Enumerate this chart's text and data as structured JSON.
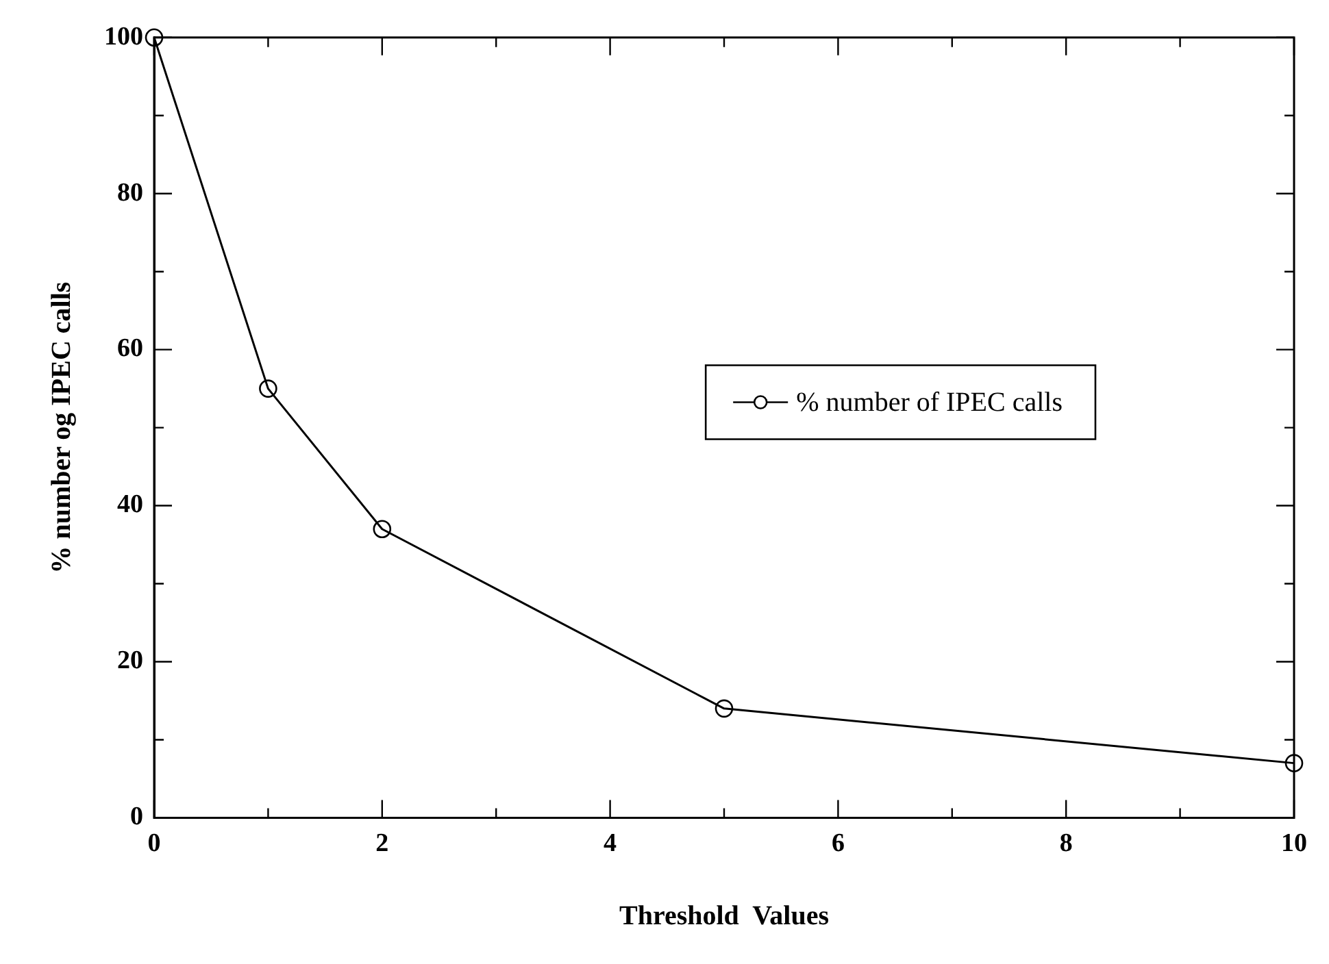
{
  "chart_data": {
    "type": "line",
    "xlabel": "Threshold  Values",
    "ylabel": "% number og IPEC calls",
    "x": [
      0,
      1,
      2,
      5,
      10
    ],
    "series": [
      {
        "name": "% number of IPEC calls",
        "color": "#000000",
        "values": [
          100,
          55,
          37,
          14,
          7
        ]
      }
    ],
    "xlim": [
      0,
      10
    ],
    "xticks": [
      0,
      {
        "value": 1,
        "label": null
      },
      2,
      {
        "value": 3,
        "label": null
      },
      4,
      {
        "value": 5,
        "label": null
      },
      6,
      {
        "value": 7,
        "label": null
      },
      8,
      {
        "value": 9,
        "label": null
      },
      10
    ],
    "ylim": [
      0,
      100
    ],
    "yticks": [
      0,
      {
        "value": 10,
        "label": null
      },
      20,
      {
        "value": 30,
        "label": null
      },
      40,
      {
        "value": 50,
        "label": null
      },
      60,
      {
        "value": 70,
        "label": null
      },
      80,
      {
        "value": 90,
        "label": null
      },
      100
    ],
    "grid": false,
    "legend": "right",
    "marker": "circle",
    "line_style": "solid"
  }
}
